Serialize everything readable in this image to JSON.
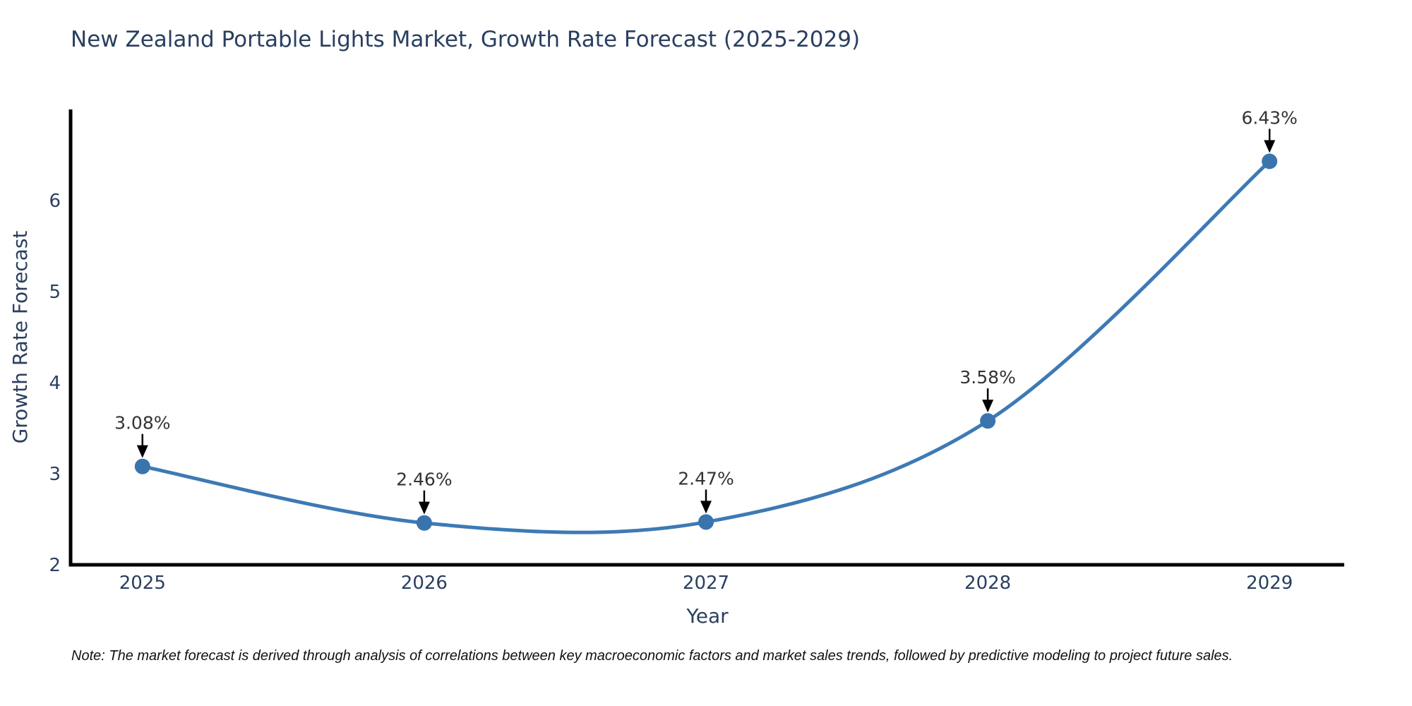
{
  "page": {
    "title": "New Zealand Portable Lights Market, Growth Rate Forecast (2025-2029)",
    "note": "Note: The market forecast is derived through analysis of correlations between key macroeconomic factors and market sales trends, followed by predictive modeling to project future sales."
  },
  "colors": {
    "background": "#ffffff",
    "title_text": "#2a3f5f",
    "tick_text": "#2a3f5f",
    "axis_title_text": "#2a3f5f",
    "axis_line": "#000000",
    "series_line": "#3d7ab5",
    "marker_fill": "#3a74ad",
    "annotation_text": "#333333",
    "annotation_arrow": "#000000"
  },
  "chart_data": {
    "type": "line",
    "title": "New Zealand Portable Lights Market, Growth Rate Forecast (2025-2029)",
    "xlabel": "Year",
    "ylabel": "Growth Rate Forecast",
    "x": [
      2025,
      2026,
      2027,
      2028,
      2029
    ],
    "y": [
      3.08,
      2.46,
      2.47,
      3.58,
      6.43
    ],
    "point_labels": [
      "3.08%",
      "2.46%",
      "2.47%",
      "3.58%",
      "6.43%"
    ],
    "xtick_labels": [
      "2025",
      "2026",
      "2027",
      "2028",
      "2029"
    ],
    "ytick_values": [
      2,
      3,
      4,
      5,
      6
    ],
    "ytick_labels": [
      "2",
      "3",
      "4",
      "5",
      "6"
    ],
    "xlim": [
      2024.745,
      2029.265
    ],
    "ylim": [
      2,
      7
    ],
    "line_shape": "spline",
    "grid": false,
    "legend_position": "none",
    "annotation_style": "value label with black arrow pointing down at marker"
  }
}
